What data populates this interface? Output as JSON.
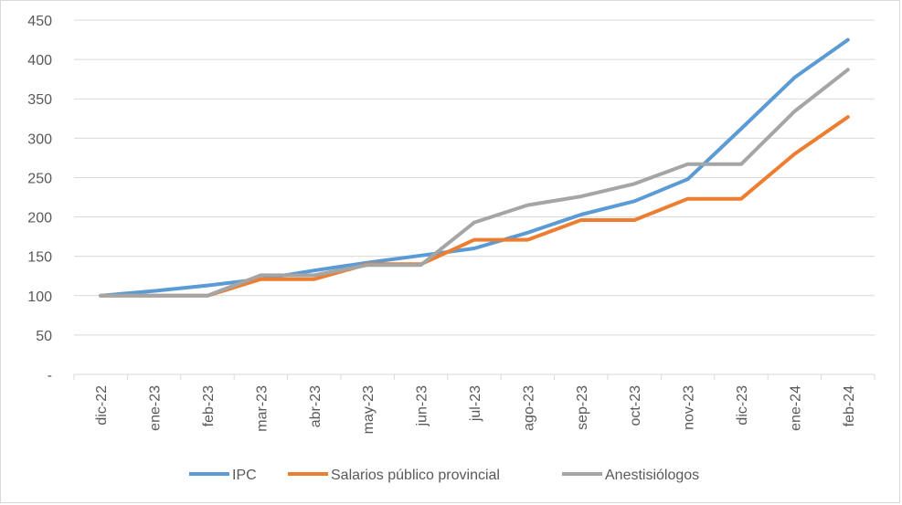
{
  "chart_data": {
    "type": "line",
    "title": "",
    "xlabel": "",
    "ylabel": "",
    "ylim": [
      0,
      450
    ],
    "y_ticks": [
      0,
      50,
      100,
      150,
      200,
      250,
      300,
      350,
      400,
      450
    ],
    "y_tick_labels": [
      "-",
      "50",
      "100",
      "150",
      "200",
      "250",
      "300",
      "350",
      "400",
      "450"
    ],
    "grid": "horizontal",
    "legend_position": "bottom",
    "categories": [
      "dic-22",
      "ene-23",
      "feb-23",
      "mar-23",
      "abr-23",
      "may-23",
      "jun-23",
      "jul-23",
      "ago-23",
      "sep-23",
      "oct-23",
      "nov-23",
      "dic-23",
      "ene-24",
      "feb-24"
    ],
    "series": [
      {
        "name": "IPC",
        "color": "#5b9bd5",
        "values": [
          100,
          106,
          113,
          121,
          132,
          142,
          151,
          160,
          180,
          203,
          220,
          248,
          312,
          377,
          425
        ]
      },
      {
        "name": "Salarios público provincial",
        "color": "#ed7d31",
        "values": [
          100,
          100,
          100,
          121,
          121,
          140,
          140,
          171,
          171,
          196,
          196,
          223,
          223,
          280,
          327
        ]
      },
      {
        "name": "Anestisiólogos",
        "color": "#a5a5a5",
        "values": [
          100,
          100,
          100,
          126,
          126,
          139,
          139,
          193,
          215,
          226,
          242,
          267,
          267,
          334,
          387
        ]
      }
    ]
  }
}
